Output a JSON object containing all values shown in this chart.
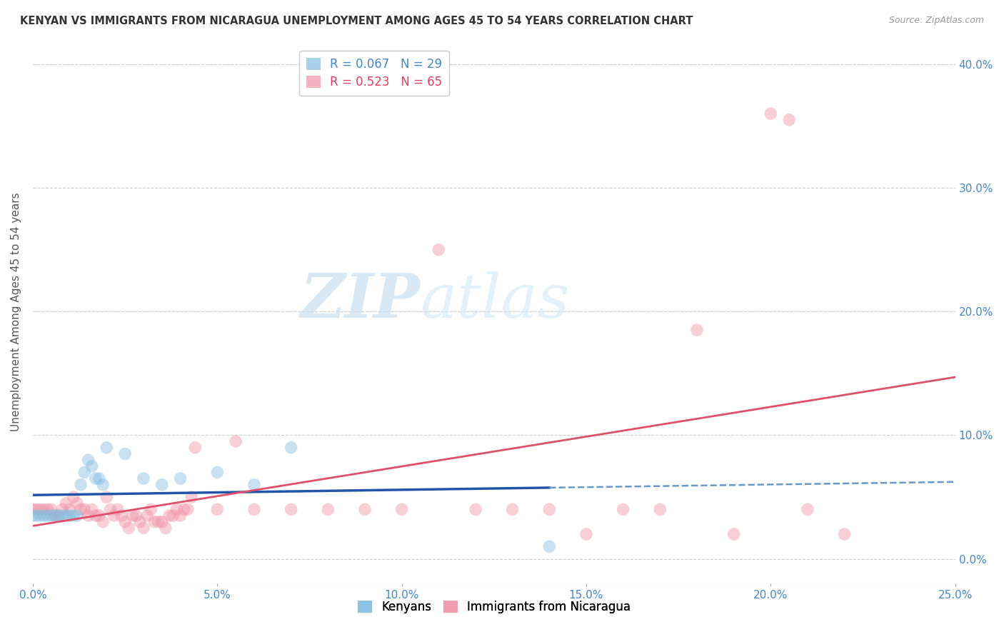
{
  "title": "KENYAN VS IMMIGRANTS FROM NICARAGUA UNEMPLOYMENT AMONG AGES 45 TO 54 YEARS CORRELATION CHART",
  "source": "Source: ZipAtlas.com",
  "ylabel": "Unemployment Among Ages 45 to 54 years",
  "xlim": [
    0.0,
    0.25
  ],
  "ylim": [
    -0.02,
    0.42
  ],
  "xticks": [
    0.0,
    0.05,
    0.1,
    0.15,
    0.2,
    0.25
  ],
  "yticks": [
    0.0,
    0.1,
    0.2,
    0.3,
    0.4
  ],
  "right_ytick_labels": [
    "0.0%",
    "10.0%",
    "20.0%",
    "30.0%",
    "40.0%"
  ],
  "watermark_zip": "ZIP",
  "watermark_atlas": "atlas",
  "kenyan_points": [
    [
      0.0,
      0.035
    ],
    [
      0.001,
      0.035
    ],
    [
      0.002,
      0.035
    ],
    [
      0.003,
      0.035
    ],
    [
      0.004,
      0.035
    ],
    [
      0.005,
      0.035
    ],
    [
      0.006,
      0.035
    ],
    [
      0.007,
      0.035
    ],
    [
      0.008,
      0.035
    ],
    [
      0.009,
      0.035
    ],
    [
      0.01,
      0.035
    ],
    [
      0.011,
      0.035
    ],
    [
      0.012,
      0.035
    ],
    [
      0.013,
      0.06
    ],
    [
      0.014,
      0.07
    ],
    [
      0.015,
      0.08
    ],
    [
      0.016,
      0.075
    ],
    [
      0.017,
      0.065
    ],
    [
      0.018,
      0.065
    ],
    [
      0.019,
      0.06
    ],
    [
      0.02,
      0.09
    ],
    [
      0.025,
      0.085
    ],
    [
      0.03,
      0.065
    ],
    [
      0.035,
      0.06
    ],
    [
      0.04,
      0.065
    ],
    [
      0.05,
      0.07
    ],
    [
      0.06,
      0.06
    ],
    [
      0.07,
      0.09
    ],
    [
      0.14,
      0.01
    ]
  ],
  "nicaragua_points": [
    [
      0.0,
      0.04
    ],
    [
      0.001,
      0.04
    ],
    [
      0.002,
      0.04
    ],
    [
      0.003,
      0.04
    ],
    [
      0.004,
      0.04
    ],
    [
      0.005,
      0.04
    ],
    [
      0.006,
      0.035
    ],
    [
      0.007,
      0.035
    ],
    [
      0.008,
      0.04
    ],
    [
      0.009,
      0.045
    ],
    [
      0.01,
      0.04
    ],
    [
      0.011,
      0.05
    ],
    [
      0.012,
      0.045
    ],
    [
      0.013,
      0.04
    ],
    [
      0.014,
      0.04
    ],
    [
      0.015,
      0.035
    ],
    [
      0.016,
      0.04
    ],
    [
      0.017,
      0.035
    ],
    [
      0.018,
      0.035
    ],
    [
      0.019,
      0.03
    ],
    [
      0.02,
      0.05
    ],
    [
      0.021,
      0.04
    ],
    [
      0.022,
      0.035
    ],
    [
      0.023,
      0.04
    ],
    [
      0.024,
      0.035
    ],
    [
      0.025,
      0.03
    ],
    [
      0.026,
      0.025
    ],
    [
      0.027,
      0.035
    ],
    [
      0.028,
      0.035
    ],
    [
      0.029,
      0.03
    ],
    [
      0.03,
      0.025
    ],
    [
      0.031,
      0.035
    ],
    [
      0.032,
      0.04
    ],
    [
      0.033,
      0.03
    ],
    [
      0.034,
      0.03
    ],
    [
      0.035,
      0.03
    ],
    [
      0.036,
      0.025
    ],
    [
      0.037,
      0.035
    ],
    [
      0.038,
      0.035
    ],
    [
      0.039,
      0.04
    ],
    [
      0.04,
      0.035
    ],
    [
      0.041,
      0.04
    ],
    [
      0.042,
      0.04
    ],
    [
      0.043,
      0.05
    ],
    [
      0.044,
      0.09
    ],
    [
      0.05,
      0.04
    ],
    [
      0.055,
      0.095
    ],
    [
      0.06,
      0.04
    ],
    [
      0.07,
      0.04
    ],
    [
      0.08,
      0.04
    ],
    [
      0.09,
      0.04
    ],
    [
      0.1,
      0.04
    ],
    [
      0.11,
      0.25
    ],
    [
      0.12,
      0.04
    ],
    [
      0.13,
      0.04
    ],
    [
      0.14,
      0.04
    ],
    [
      0.15,
      0.02
    ],
    [
      0.16,
      0.04
    ],
    [
      0.17,
      0.04
    ],
    [
      0.18,
      0.185
    ],
    [
      0.19,
      0.02
    ],
    [
      0.2,
      0.36
    ],
    [
      0.205,
      0.355
    ],
    [
      0.21,
      0.04
    ],
    [
      0.22,
      0.02
    ]
  ],
  "kenyan_color": "#85bde0",
  "nicaragua_color": "#f093a8",
  "kenyan_line_color_solid": "#2255aa",
  "kenyan_line_color_dashed": "#6699cc",
  "nicaragua_line_color": "#e0506a",
  "background_color": "#ffffff",
  "grid_color": "#cccccc",
  "kenyan_R": 0.067,
  "kenyan_N": 29,
  "nicaragua_R": 0.523,
  "nicaragua_N": 65
}
